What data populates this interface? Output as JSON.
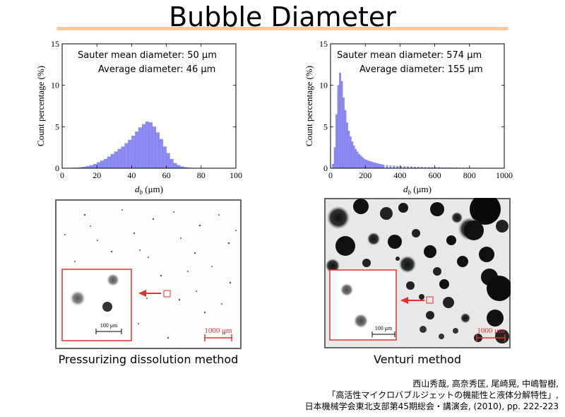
{
  "title": "Bubble Diameter",
  "chart_data": [
    {
      "type": "bar",
      "annotation_lines": [
        "Sauter mean diameter: 50 μm",
        "Average diameter: 46 μm"
      ],
      "xlabel_main": "d",
      "xlabel_sub": "b",
      "xlabel_unit": " (μm)",
      "ylabel": "Count percentage (%)",
      "xlim": [
        0,
        100
      ],
      "ylim": [
        0,
        15
      ],
      "xticks": [
        0,
        20,
        40,
        60,
        80,
        100
      ],
      "yticks": [
        0,
        5,
        10,
        15
      ],
      "bin_width": 2,
      "bin_starts": [
        6,
        8,
        10,
        12,
        14,
        16,
        18,
        20,
        22,
        24,
        26,
        28,
        30,
        32,
        34,
        36,
        38,
        40,
        42,
        44,
        46,
        48,
        50,
        52,
        54,
        56,
        58,
        60,
        62,
        64,
        66,
        68,
        70,
        72,
        74
      ],
      "values": [
        0.05,
        0.05,
        0.1,
        0.15,
        0.25,
        0.35,
        0.5,
        0.7,
        0.9,
        1.1,
        1.4,
        1.7,
        2.0,
        2.3,
        2.6,
        3.0,
        3.4,
        3.9,
        4.4,
        4.9,
        5.3,
        5.6,
        5.5,
        5.0,
        4.3,
        3.5,
        2.6,
        1.8,
        1.1,
        0.6,
        0.35,
        0.2,
        0.1,
        0.05,
        0.03
      ]
    },
    {
      "type": "bar",
      "annotation_lines": [
        "Sauter mean diameter: 574 μm",
        "Average diameter: 155 μm"
      ],
      "xlabel_main": "d",
      "xlabel_sub": "b",
      "xlabel_unit": " (μm)",
      "ylabel": "Count percentage (%)",
      "xlim": [
        0,
        1000
      ],
      "ylim": [
        0,
        15
      ],
      "xticks": [
        0,
        200,
        400,
        600,
        800,
        1000
      ],
      "yticks": [
        0,
        5,
        10,
        15
      ],
      "bin_width": 10,
      "bin_starts": [
        10,
        20,
        30,
        40,
        50,
        60,
        70,
        80,
        90,
        100,
        110,
        120,
        130,
        140,
        150,
        160,
        170,
        180,
        190,
        200,
        210,
        220,
        230,
        240,
        250,
        260,
        270,
        280,
        290,
        300,
        320,
        340,
        360,
        380,
        400,
        420,
        440,
        460,
        480,
        500,
        520,
        540,
        560,
        580,
        600,
        620,
        640,
        660,
        680,
        700,
        720,
        740,
        760,
        780,
        800,
        820,
        840,
        860,
        880,
        900
      ],
      "values": [
        0.5,
        2.5,
        6.5,
        10.0,
        11.5,
        10.5,
        8.5,
        7.0,
        5.5,
        4.5,
        3.8,
        3.2,
        2.7,
        2.3,
        2.0,
        1.7,
        1.5,
        1.3,
        1.1,
        1.0,
        0.9,
        0.85,
        0.8,
        0.7,
        0.65,
        0.6,
        0.55,
        0.5,
        0.45,
        0.4,
        0.35,
        0.3,
        0.3,
        0.25,
        0.25,
        0.2,
        0.2,
        0.2,
        0.15,
        0.15,
        0.15,
        0.1,
        0.1,
        0.1,
        0.1,
        0.1,
        0.08,
        0.08,
        0.08,
        0.06,
        0.06,
        0.05,
        0.05,
        0.05,
        0.04,
        0.04,
        0.03,
        0.03,
        0.02,
        0.02
      ]
    }
  ],
  "panels": {
    "left": {
      "scale_large": "1000 μm",
      "scale_small": "100 μm",
      "caption": "Pressurizing dissolution method"
    },
    "right": {
      "scale_large": "1000 μm",
      "scale_small": "100 μm",
      "caption": "Venturi method"
    }
  },
  "citation": {
    "line1": "西山秀哉, 高奈秀匡, 尾崎晃, 中嶋智樹,",
    "line2": "「高活性マイクロバブルジェットの機能性と液体分解特性」,",
    "line3": "日本機械学会東北支部第45期総会・講演会, (2010), pp. 222-223"
  },
  "colors": {
    "bar": "#8c8cf2",
    "bar_edge": "#6e6ee6",
    "accent_red": "#e4302b",
    "title_rule": "#f7c99a"
  }
}
